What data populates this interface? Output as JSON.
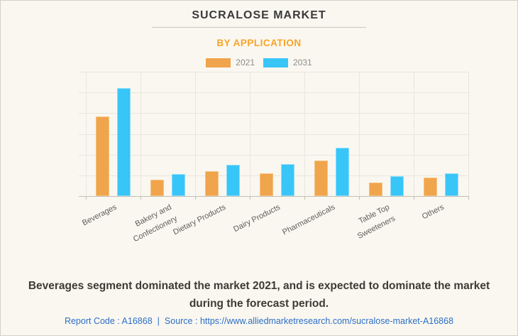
{
  "chart_data": {
    "type": "bar",
    "title": "SUCRALOSE MARKET",
    "subtitle": "BY APPLICATION",
    "categories": [
      "Beverages",
      "Bakery and\nConfectionery",
      "Dietary Products",
      "Dairy Products",
      "Pharmaceuticals",
      "Table Top\nSweeteners",
      "Others"
    ],
    "series": [
      {
        "name": "2021",
        "color": "#F0A44B",
        "edge_color": "#F5C383",
        "values": [
          3.85,
          0.8,
          1.2,
          1.1,
          1.7,
          0.65,
          0.88
        ]
      },
      {
        "name": "2031",
        "color": "#38C5F8",
        "edge_color": "#8EDDFB",
        "values": [
          5.2,
          1.05,
          1.5,
          1.55,
          2.35,
          0.95,
          1.1
        ]
      }
    ],
    "ylim": [
      0,
      6
    ],
    "grid_step": 1,
    "grid": true,
    "legend_position": "top",
    "y_axis_labels_visible": false,
    "colors": {
      "background": "#FAF7F0",
      "gridline": "#E9E6DF",
      "axis": "#C2BFB6",
      "subtitle_accent": "#F8A426"
    }
  },
  "summary": "Beverages segment dominated the market 2021, and is expected to dominate the market during the forecast period.",
  "footer": {
    "report_code": "Report Code : A16868",
    "separator": "|",
    "source_label": "Source :",
    "source_url": "https://www.alliedmarketresearch.com/sucralose-market-A16868"
  }
}
